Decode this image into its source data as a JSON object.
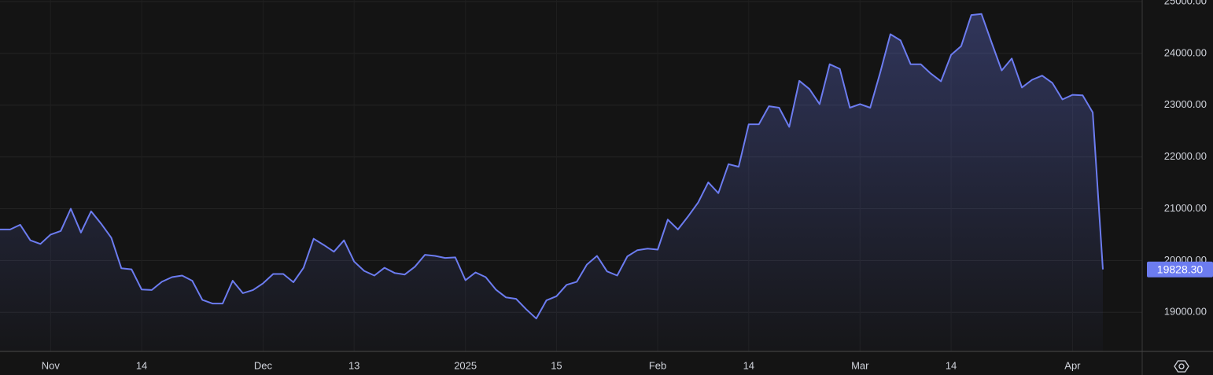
{
  "chart_data": {
    "type": "area",
    "categories": [
      null,
      null,
      null,
      null,
      null,
      "Nov",
      null,
      null,
      null,
      null,
      null,
      null,
      null,
      null,
      "14",
      null,
      null,
      null,
      null,
      null,
      null,
      null,
      null,
      null,
      null,
      null,
      "Dec",
      null,
      null,
      null,
      null,
      null,
      null,
      null,
      null,
      "13",
      null,
      null,
      null,
      null,
      null,
      null,
      null,
      null,
      null,
      null,
      "2025",
      null,
      null,
      null,
      null,
      null,
      null,
      null,
      null,
      "15",
      null,
      null,
      null,
      null,
      null,
      null,
      null,
      null,
      null,
      "Feb",
      null,
      null,
      null,
      null,
      null,
      null,
      null,
      null,
      "14",
      null,
      null,
      null,
      null,
      null,
      null,
      null,
      null,
      null,
      null,
      "Mar",
      null,
      null,
      null,
      null,
      null,
      null,
      null,
      null,
      "14",
      null,
      null,
      null,
      null,
      null,
      null,
      null,
      null,
      null,
      null,
      null,
      "Apr",
      null,
      null,
      null
    ],
    "series": [
      {
        "color": "#6c7cf0",
        "values": [
          20600,
          20600,
          20690,
          20390,
          20320,
          20500,
          20570,
          21000,
          20540,
          20950,
          20710,
          20440,
          19850,
          19830,
          19440,
          19430,
          19590,
          19680,
          19710,
          19610,
          19240,
          19170,
          19170,
          19610,
          19370,
          19430,
          19560,
          19740,
          19740,
          19580,
          19860,
          20420,
          20300,
          20170,
          20390,
          19980,
          19800,
          19710,
          19860,
          19760,
          19730,
          19880,
          20110,
          20090,
          20050,
          20060,
          19620,
          19770,
          19680,
          19440,
          19290,
          19260,
          19060,
          18880,
          19230,
          19310,
          19530,
          19590,
          19920,
          20090,
          19790,
          19710,
          20080,
          20200,
          20230,
          20210,
          20790,
          20600,
          20850,
          21120,
          21510,
          21300,
          21860,
          21810,
          22630,
          22630,
          22980,
          22950,
          22580,
          23470,
          23310,
          23020,
          23790,
          23700,
          22950,
          23020,
          22950,
          23630,
          24370,
          24250,
          23790,
          23790,
          23610,
          23460,
          23970,
          24140,
          24740,
          24760,
          24210,
          23670,
          23900,
          23340,
          23490,
          23570,
          23430,
          23110,
          23200,
          23190,
          22860,
          19828.3
        ]
      }
    ],
    "last_price": {
      "value": 19828.3,
      "label": "19828.30"
    },
    "ylim": [
      18245,
      25030
    ],
    "yticks": [
      {
        "value": 19000,
        "label": "19000.00"
      },
      {
        "value": 20000,
        "label": "20000.00"
      },
      {
        "value": 21000,
        "label": "21000.00"
      },
      {
        "value": 22000,
        "label": "22000.00"
      },
      {
        "value": 23000,
        "label": "23000.00"
      },
      {
        "value": 24000,
        "label": "24000.00"
      },
      {
        "value": 25000,
        "label": "25000.00"
      }
    ],
    "grid": true
  }
}
